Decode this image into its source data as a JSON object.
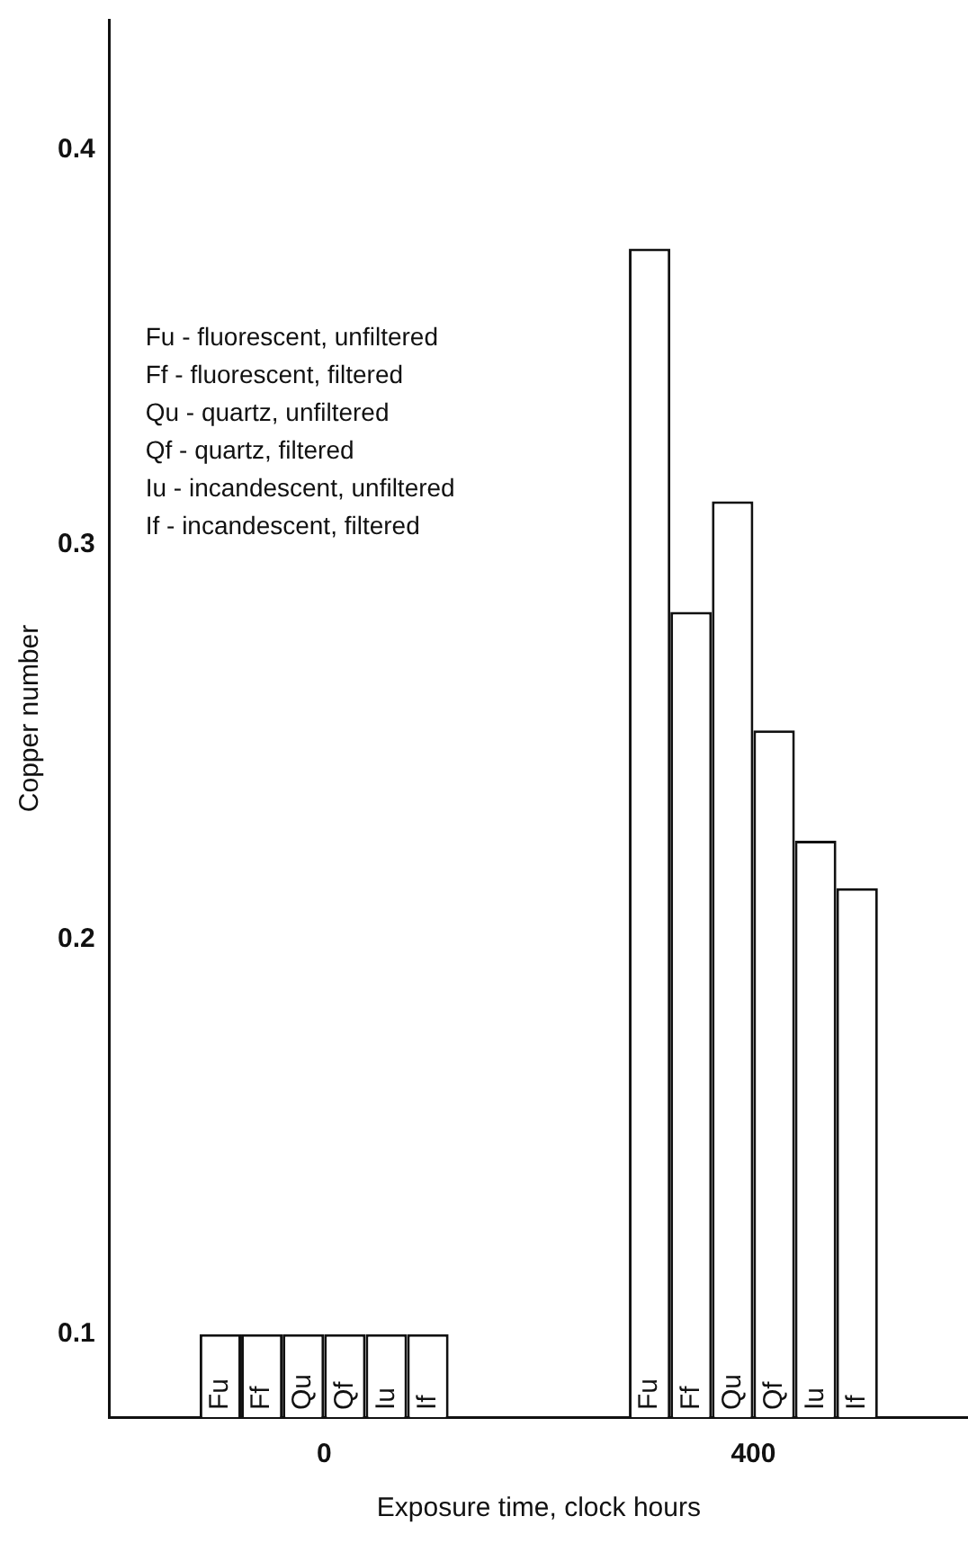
{
  "chart_data": {
    "type": "bar",
    "xlabel": "Exposure time, clock hours",
    "ylabel": "Copper number",
    "categories": [
      "0",
      "400"
    ],
    "series": [
      {
        "name": "Fu",
        "color": "#ffffff",
        "values": [
          0.1,
          0.375
        ]
      },
      {
        "name": "Ff",
        "color": "#ffffff",
        "values": [
          0.1,
          0.283
        ]
      },
      {
        "name": "Qu",
        "color": "#ffffff",
        "values": [
          0.1,
          0.311
        ]
      },
      {
        "name": "Qf",
        "color": "#ffffff",
        "values": [
          0.1,
          0.253
        ]
      },
      {
        "name": "Iu",
        "color": "#ffffff",
        "values": [
          0.1,
          0.225
        ]
      },
      {
        "name": "If",
        "color": "#ffffff",
        "values": [
          0.1,
          0.213
        ]
      }
    ],
    "ylim": [
      0.079,
      0.433
    ],
    "yticks": [
      0.1,
      0.2,
      0.3,
      0.4
    ],
    "grid": false,
    "legend": false,
    "annotations": [
      "Fu - fluorescent, unfiltered",
      "Ff - fluorescent, filtered",
      "Qu - quartz, unfiltered",
      "Qf - quartz, filtered",
      "Iu - incandescent, unfiltered",
      "If - incandescent, filtered"
    ]
  }
}
